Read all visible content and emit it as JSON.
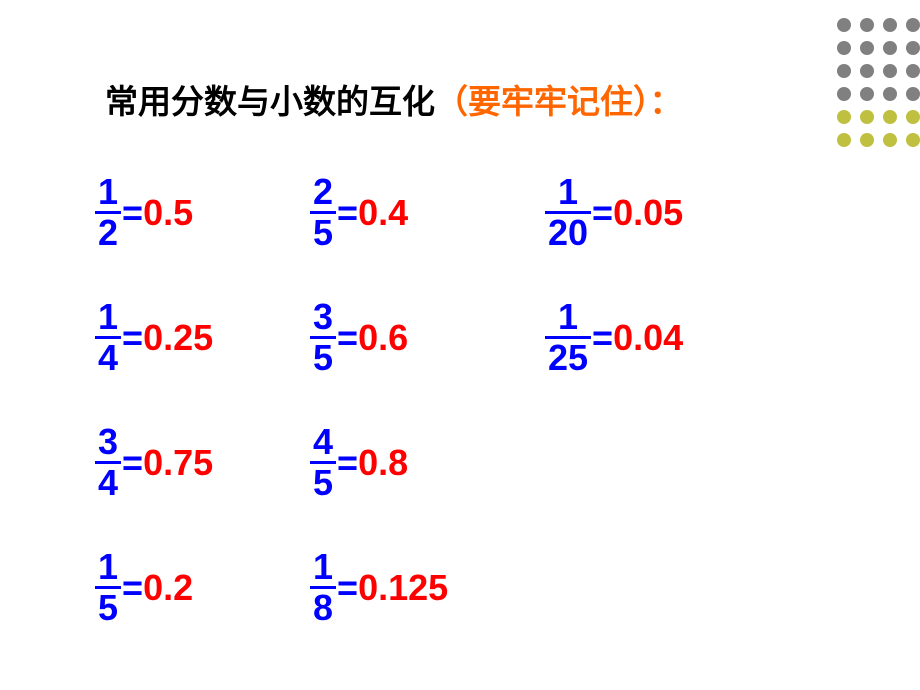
{
  "decoration": {
    "columns": [
      [
        "#808080",
        "#808080",
        "#808080",
        "#808080",
        "#c0c040",
        "#c0c040"
      ],
      [
        "#808080",
        "#808080",
        "#808080",
        "#808080",
        "#c0c040",
        "#c0c040"
      ],
      [
        "#808080",
        "#808080",
        "#808080",
        "#808080",
        "#c0c040",
        "#c0c040"
      ],
      [
        "#808080",
        "#808080",
        "#808080",
        "#808080",
        "#c0c040",
        "#c0c040"
      ]
    ]
  },
  "title": {
    "black": "常用分数与小数的互化",
    "orange": "（要牢牢记住）：",
    "black_color": "#000000",
    "orange_color": "#ff6600",
    "fontsize": 33
  },
  "colors": {
    "fraction": "#0000ff",
    "equals": "#0000ff",
    "decimal": "#ff0000",
    "background": "#ffffff"
  },
  "fontsize": 36,
  "items": [
    {
      "row": 1,
      "col": 1,
      "numerator": "1",
      "denominator": "2",
      "decimal": "0.5"
    },
    {
      "row": 1,
      "col": 2,
      "numerator": "2",
      "denominator": "5",
      "decimal": "0.4"
    },
    {
      "row": 1,
      "col": 3,
      "numerator": "1",
      "denominator": "20",
      "decimal": "0.05"
    },
    {
      "row": 2,
      "col": 1,
      "numerator": "1",
      "denominator": "4",
      "decimal": "0.25"
    },
    {
      "row": 2,
      "col": 2,
      "numerator": "3",
      "denominator": "5",
      "decimal": "0.6"
    },
    {
      "row": 2,
      "col": 3,
      "numerator": "1",
      "denominator": "25",
      "decimal": "0.04"
    },
    {
      "row": 3,
      "col": 1,
      "numerator": "3",
      "denominator": "4",
      "decimal": "0.75"
    },
    {
      "row": 3,
      "col": 2,
      "numerator": "4",
      "denominator": "5",
      "decimal": "0.8"
    },
    {
      "row": 4,
      "col": 1,
      "numerator": "1",
      "denominator": "5",
      "decimal": "0.2"
    },
    {
      "row": 4,
      "col": 2,
      "numerator": "1",
      "denominator": "8",
      "decimal": "0.125"
    }
  ]
}
